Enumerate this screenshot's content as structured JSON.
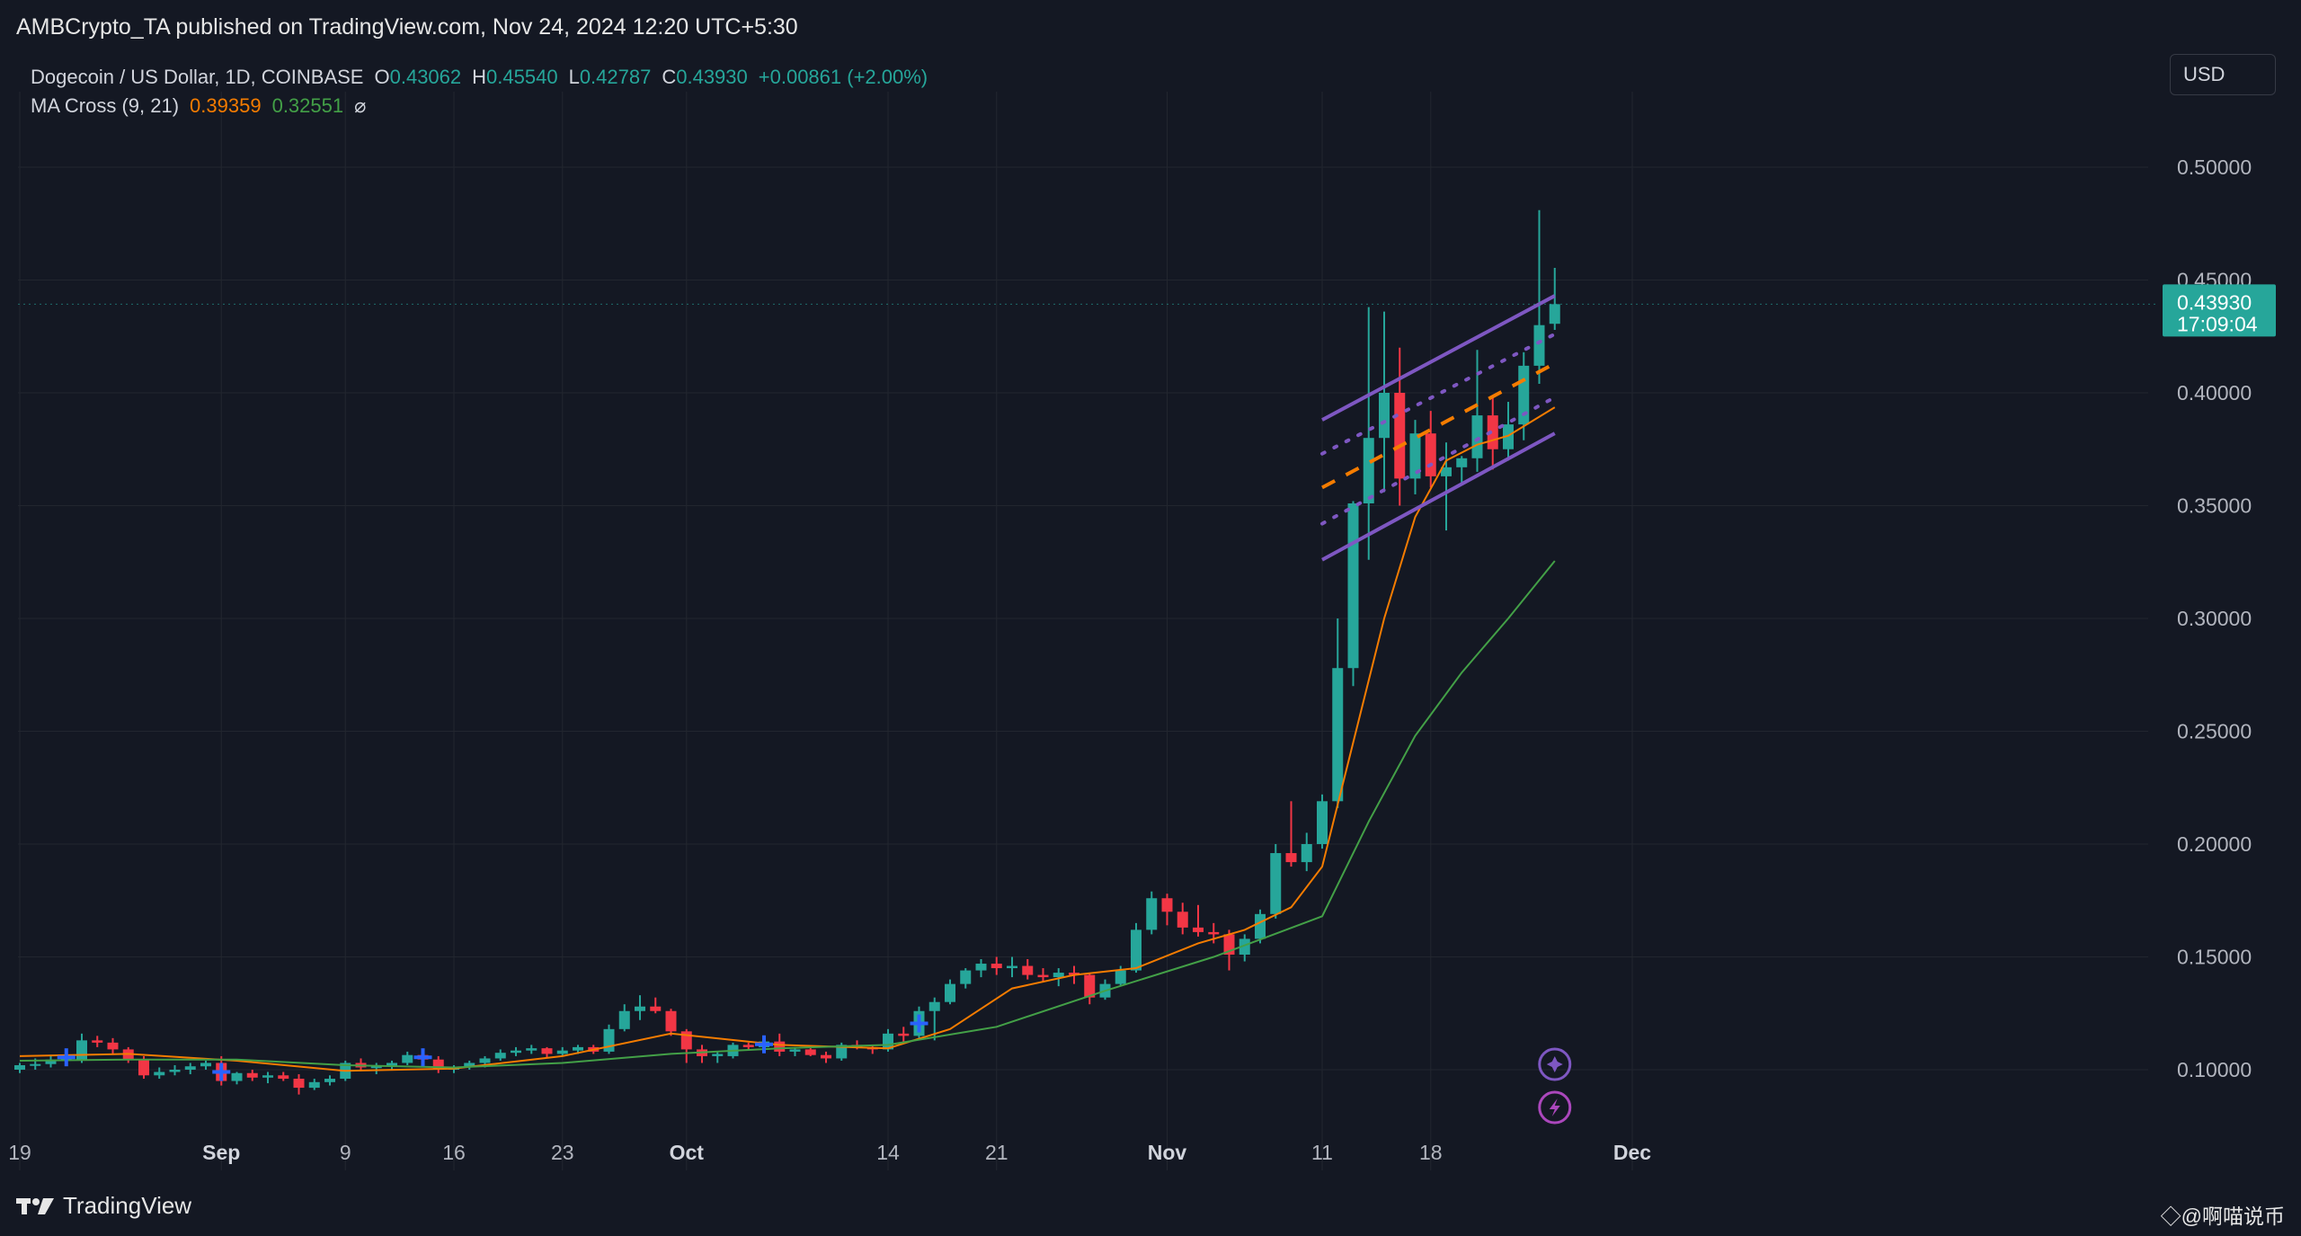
{
  "header": {
    "published": "AMBCrypto_TA published on TradingView.com, Nov 24, 2024 12:20 UTC+5:30"
  },
  "legend": {
    "symbol": "Dogecoin / US Dollar, 1D, COINBASE",
    "o_label": "O",
    "o_value": "0.43062",
    "h_label": "H",
    "h_value": "0.45540",
    "l_label": "L",
    "l_value": "0.42787",
    "c_label": "C",
    "c_value": "0.43930",
    "change": "+0.00861 (+2.00%)",
    "ma_name": "MA Cross (9, 21)",
    "ma_fast_value": "0.39359",
    "ma_slow_value": "0.32551",
    "ma_icon": "⌀"
  },
  "currency_button": "USD",
  "footer": {
    "brand": "TradingView",
    "watermark": "◇@啊喵说币"
  },
  "colors": {
    "up": "#26a69a",
    "down": "#f23645",
    "ma_fast": "#f57c00",
    "ma_slow": "#43a047",
    "channel": "#7e57c2",
    "background": "#141823",
    "grid": "#22262f",
    "cross_marker": "#2962ff"
  },
  "chart_data": {
    "type": "candlestick",
    "title": "Dogecoin / US Dollar, 1D, COINBASE",
    "y_ticks": [
      "0.10000",
      "0.15000",
      "0.20000",
      "0.25000",
      "0.30000",
      "0.35000",
      "0.40000",
      "0.45000",
      "0.50000"
    ],
    "ylim": [
      0.06,
      0.52
    ],
    "x_ticks": [
      {
        "label": "19",
        "date": "2024-08-19"
      },
      {
        "label": "Sep",
        "date": "2024-09-01"
      },
      {
        "label": "9",
        "date": "2024-09-09"
      },
      {
        "label": "16",
        "date": "2024-09-16"
      },
      {
        "label": "23",
        "date": "2024-09-23"
      },
      {
        "label": "Oct",
        "date": "2024-10-01"
      },
      {
        "label": "14",
        "date": "2024-10-14"
      },
      {
        "label": "21",
        "date": "2024-10-21"
      },
      {
        "label": "Nov",
        "date": "2024-11-01"
      },
      {
        "label": "11",
        "date": "2024-11-11"
      },
      {
        "label": "18",
        "date": "2024-11-18"
      },
      {
        "label": "Dec",
        "date": "2024-12-01"
      }
    ],
    "x_range": [
      "2024-08-19",
      "2024-12-03"
    ],
    "last_price": "0.43930",
    "countdown": "17:09:04",
    "candles": [
      {
        "d": "2024-08-19",
        "o": 0.1,
        "h": 0.103,
        "l": 0.0985,
        "c": 0.102
      },
      {
        "d": "2024-08-20",
        "o": 0.102,
        "h": 0.105,
        "l": 0.1,
        "c": 0.1025
      },
      {
        "d": "2024-08-21",
        "o": 0.1025,
        "h": 0.106,
        "l": 0.101,
        "c": 0.1045
      },
      {
        "d": "2024-08-22",
        "o": 0.1045,
        "h": 0.108,
        "l": 0.103,
        "c": 0.1065
      },
      {
        "d": "2024-08-23",
        "o": 0.104,
        "h": 0.116,
        "l": 0.103,
        "c": 0.113
      },
      {
        "d": "2024-08-24",
        "o": 0.113,
        "h": 0.115,
        "l": 0.11,
        "c": 0.112
      },
      {
        "d": "2024-08-25",
        "o": 0.112,
        "h": 0.114,
        "l": 0.107,
        "c": 0.109
      },
      {
        "d": "2024-08-26",
        "o": 0.109,
        "h": 0.11,
        "l": 0.103,
        "c": 0.1045
      },
      {
        "d": "2024-08-27",
        "o": 0.1045,
        "h": 0.106,
        "l": 0.096,
        "c": 0.0975
      },
      {
        "d": "2024-08-28",
        "o": 0.0975,
        "h": 0.101,
        "l": 0.096,
        "c": 0.099
      },
      {
        "d": "2024-08-29",
        "o": 0.099,
        "h": 0.102,
        "l": 0.0975,
        "c": 0.1
      },
      {
        "d": "2024-08-30",
        "o": 0.1,
        "h": 0.103,
        "l": 0.098,
        "c": 0.1015
      },
      {
        "d": "2024-08-31",
        "o": 0.1015,
        "h": 0.104,
        "l": 0.1,
        "c": 0.103
      },
      {
        "d": "2024-09-01",
        "o": 0.103,
        "h": 0.106,
        "l": 0.093,
        "c": 0.095
      },
      {
        "d": "2024-09-02",
        "o": 0.095,
        "h": 0.099,
        "l": 0.0935,
        "c": 0.0985
      },
      {
        "d": "2024-09-03",
        "o": 0.0985,
        "h": 0.1,
        "l": 0.095,
        "c": 0.0965
      },
      {
        "d": "2024-09-04",
        "o": 0.0965,
        "h": 0.099,
        "l": 0.094,
        "c": 0.0975
      },
      {
        "d": "2024-09-05",
        "o": 0.0975,
        "h": 0.099,
        "l": 0.095,
        "c": 0.096
      },
      {
        "d": "2024-09-06",
        "o": 0.096,
        "h": 0.098,
        "l": 0.089,
        "c": 0.092
      },
      {
        "d": "2024-09-07",
        "o": 0.092,
        "h": 0.096,
        "l": 0.091,
        "c": 0.0945
      },
      {
        "d": "2024-09-08",
        "o": 0.0945,
        "h": 0.0975,
        "l": 0.093,
        "c": 0.096
      },
      {
        "d": "2024-09-09",
        "o": 0.096,
        "h": 0.104,
        "l": 0.095,
        "c": 0.103
      },
      {
        "d": "2024-09-10",
        "o": 0.103,
        "h": 0.105,
        "l": 0.1,
        "c": 0.101
      },
      {
        "d": "2024-09-11",
        "o": 0.101,
        "h": 0.103,
        "l": 0.098,
        "c": 0.1015
      },
      {
        "d": "2024-09-12",
        "o": 0.1015,
        "h": 0.104,
        "l": 0.1,
        "c": 0.103
      },
      {
        "d": "2024-09-13",
        "o": 0.103,
        "h": 0.108,
        "l": 0.102,
        "c": 0.1065
      },
      {
        "d": "2024-09-14",
        "o": 0.1065,
        "h": 0.108,
        "l": 0.103,
        "c": 0.1045
      },
      {
        "d": "2024-09-15",
        "o": 0.1045,
        "h": 0.106,
        "l": 0.0985,
        "c": 0.1
      },
      {
        "d": "2024-09-16",
        "o": 0.1,
        "h": 0.102,
        "l": 0.0985,
        "c": 0.101
      },
      {
        "d": "2024-09-17",
        "o": 0.101,
        "h": 0.104,
        "l": 0.1,
        "c": 0.103
      },
      {
        "d": "2024-09-18",
        "o": 0.103,
        "h": 0.106,
        "l": 0.101,
        "c": 0.105
      },
      {
        "d": "2024-09-19",
        "o": 0.105,
        "h": 0.109,
        "l": 0.104,
        "c": 0.1075
      },
      {
        "d": "2024-09-20",
        "o": 0.1075,
        "h": 0.11,
        "l": 0.106,
        "c": 0.1085
      },
      {
        "d": "2024-09-21",
        "o": 0.1085,
        "h": 0.111,
        "l": 0.107,
        "c": 0.1095
      },
      {
        "d": "2024-09-22",
        "o": 0.1095,
        "h": 0.11,
        "l": 0.105,
        "c": 0.107
      },
      {
        "d": "2024-09-23",
        "o": 0.107,
        "h": 0.11,
        "l": 0.106,
        "c": 0.1085
      },
      {
        "d": "2024-09-24",
        "o": 0.1085,
        "h": 0.111,
        "l": 0.107,
        "c": 0.11
      },
      {
        "d": "2024-09-25",
        "o": 0.11,
        "h": 0.111,
        "l": 0.107,
        "c": 0.108
      },
      {
        "d": "2024-09-26",
        "o": 0.108,
        "h": 0.12,
        "l": 0.107,
        "c": 0.118
      },
      {
        "d": "2024-09-27",
        "o": 0.118,
        "h": 0.129,
        "l": 0.117,
        "c": 0.126
      },
      {
        "d": "2024-09-28",
        "o": 0.126,
        "h": 0.133,
        "l": 0.122,
        "c": 0.128
      },
      {
        "d": "2024-09-29",
        "o": 0.128,
        "h": 0.132,
        "l": 0.125,
        "c": 0.126
      },
      {
        "d": "2024-09-30",
        "o": 0.126,
        "h": 0.127,
        "l": 0.115,
        "c": 0.117
      },
      {
        "d": "2024-10-01",
        "o": 0.117,
        "h": 0.118,
        "l": 0.103,
        "c": 0.109
      },
      {
        "d": "2024-10-02",
        "o": 0.109,
        "h": 0.111,
        "l": 0.103,
        "c": 0.106
      },
      {
        "d": "2024-10-03",
        "o": 0.106,
        "h": 0.108,
        "l": 0.103,
        "c": 0.107
      },
      {
        "d": "2024-10-04",
        "o": 0.106,
        "h": 0.112,
        "l": 0.105,
        "c": 0.111
      },
      {
        "d": "2024-10-05",
        "o": 0.111,
        "h": 0.112,
        "l": 0.109,
        "c": 0.11
      },
      {
        "d": "2024-10-06",
        "o": 0.11,
        "h": 0.115,
        "l": 0.109,
        "c": 0.1125
      },
      {
        "d": "2024-10-07",
        "o": 0.1125,
        "h": 0.116,
        "l": 0.106,
        "c": 0.108
      },
      {
        "d": "2024-10-08",
        "o": 0.108,
        "h": 0.11,
        "l": 0.106,
        "c": 0.109
      },
      {
        "d": "2024-10-09",
        "o": 0.109,
        "h": 0.11,
        "l": 0.106,
        "c": 0.1065
      },
      {
        "d": "2024-10-10",
        "o": 0.1065,
        "h": 0.108,
        "l": 0.103,
        "c": 0.105
      },
      {
        "d": "2024-10-11",
        "o": 0.105,
        "h": 0.112,
        "l": 0.104,
        "c": 0.111
      },
      {
        "d": "2024-10-12",
        "o": 0.111,
        "h": 0.113,
        "l": 0.109,
        "c": 0.11
      },
      {
        "d": "2024-10-13",
        "o": 0.11,
        "h": 0.111,
        "l": 0.107,
        "c": 0.109
      },
      {
        "d": "2024-10-14",
        "o": 0.109,
        "h": 0.118,
        "l": 0.108,
        "c": 0.116
      },
      {
        "d": "2024-10-15",
        "o": 0.116,
        "h": 0.119,
        "l": 0.112,
        "c": 0.115
      },
      {
        "d": "2024-10-16",
        "o": 0.115,
        "h": 0.128,
        "l": 0.114,
        "c": 0.126
      },
      {
        "d": "2024-10-17",
        "o": 0.126,
        "h": 0.132,
        "l": 0.113,
        "c": 0.13
      },
      {
        "d": "2024-10-18",
        "o": 0.13,
        "h": 0.14,
        "l": 0.129,
        "c": 0.138
      },
      {
        "d": "2024-10-19",
        "o": 0.138,
        "h": 0.145,
        "l": 0.136,
        "c": 0.144
      },
      {
        "d": "2024-10-20",
        "o": 0.144,
        "h": 0.149,
        "l": 0.141,
        "c": 0.147
      },
      {
        "d": "2024-10-21",
        "o": 0.147,
        "h": 0.15,
        "l": 0.142,
        "c": 0.145
      },
      {
        "d": "2024-10-22",
        "o": 0.145,
        "h": 0.15,
        "l": 0.141,
        "c": 0.146
      },
      {
        "d": "2024-10-23",
        "o": 0.146,
        "h": 0.149,
        "l": 0.14,
        "c": 0.142
      },
      {
        "d": "2024-10-24",
        "o": 0.142,
        "h": 0.145,
        "l": 0.139,
        "c": 0.141
      },
      {
        "d": "2024-10-25",
        "o": 0.141,
        "h": 0.145,
        "l": 0.137,
        "c": 0.143
      },
      {
        "d": "2024-10-26",
        "o": 0.143,
        "h": 0.146,
        "l": 0.138,
        "c": 0.142
      },
      {
        "d": "2024-10-27",
        "o": 0.142,
        "h": 0.143,
        "l": 0.129,
        "c": 0.132
      },
      {
        "d": "2024-10-28",
        "o": 0.132,
        "h": 0.14,
        "l": 0.131,
        "c": 0.138
      },
      {
        "d": "2024-10-29",
        "o": 0.138,
        "h": 0.146,
        "l": 0.137,
        "c": 0.144
      },
      {
        "d": "2024-10-30",
        "o": 0.144,
        "h": 0.165,
        "l": 0.143,
        "c": 0.162
      },
      {
        "d": "2024-10-31",
        "o": 0.162,
        "h": 0.179,
        "l": 0.16,
        "c": 0.176
      },
      {
        "d": "2024-11-01",
        "o": 0.176,
        "h": 0.178,
        "l": 0.164,
        "c": 0.17
      },
      {
        "d": "2024-11-02",
        "o": 0.17,
        "h": 0.174,
        "l": 0.16,
        "c": 0.163
      },
      {
        "d": "2024-11-03",
        "o": 0.163,
        "h": 0.173,
        "l": 0.159,
        "c": 0.161
      },
      {
        "d": "2024-11-04",
        "o": 0.161,
        "h": 0.165,
        "l": 0.156,
        "c": 0.16
      },
      {
        "d": "2024-11-05",
        "o": 0.16,
        "h": 0.162,
        "l": 0.144,
        "c": 0.151
      },
      {
        "d": "2024-11-06",
        "o": 0.151,
        "h": 0.16,
        "l": 0.148,
        "c": 0.158
      },
      {
        "d": "2024-11-07",
        "o": 0.158,
        "h": 0.171,
        "l": 0.156,
        "c": 0.169
      },
      {
        "d": "2024-11-08",
        "o": 0.169,
        "h": 0.2,
        "l": 0.167,
        "c": 0.196
      },
      {
        "d": "2024-11-09",
        "o": 0.196,
        "h": 0.219,
        "l": 0.19,
        "c": 0.192
      },
      {
        "d": "2024-11-10",
        "o": 0.192,
        "h": 0.205,
        "l": 0.188,
        "c": 0.2
      },
      {
        "d": "2024-11-11",
        "o": 0.2,
        "h": 0.222,
        "l": 0.198,
        "c": 0.219
      },
      {
        "d": "2024-11-12",
        "o": 0.219,
        "h": 0.3,
        "l": 0.216,
        "c": 0.278
      },
      {
        "d": "2024-11-13",
        "o": 0.278,
        "h": 0.352,
        "l": 0.27,
        "c": 0.351
      },
      {
        "d": "2024-11-14",
        "o": 0.351,
        "h": 0.438,
        "l": 0.326,
        "c": 0.38
      },
      {
        "d": "2024-11-15",
        "o": 0.38,
        "h": 0.436,
        "l": 0.356,
        "c": 0.4
      },
      {
        "d": "2024-11-16",
        "o": 0.4,
        "h": 0.42,
        "l": 0.35,
        "c": 0.362
      },
      {
        "d": "2024-11-17",
        "o": 0.362,
        "h": 0.388,
        "l": 0.355,
        "c": 0.382
      },
      {
        "d": "2024-11-18",
        "o": 0.382,
        "h": 0.392,
        "l": 0.358,
        "c": 0.363
      },
      {
        "d": "2024-11-19",
        "o": 0.363,
        "h": 0.378,
        "l": 0.339,
        "c": 0.367
      },
      {
        "d": "2024-11-20",
        "o": 0.367,
        "h": 0.372,
        "l": 0.36,
        "c": 0.371
      },
      {
        "d": "2024-11-21",
        "o": 0.371,
        "h": 0.419,
        "l": 0.365,
        "c": 0.39
      },
      {
        "d": "2024-11-22",
        "o": 0.39,
        "h": 0.398,
        "l": 0.366,
        "c": 0.375
      },
      {
        "d": "2024-11-23",
        "o": 0.375,
        "h": 0.396,
        "l": 0.37,
        "c": 0.386
      },
      {
        "d": "2024-11-24",
        "o": 0.386,
        "h": 0.418,
        "l": 0.379,
        "c": 0.412
      },
      {
        "d": "2024-11-25",
        "o": 0.412,
        "h": 0.481,
        "l": 0.404,
        "c": 0.43
      },
      {
        "d": "2024-11-26",
        "o": 0.4306,
        "h": 0.4554,
        "l": 0.4279,
        "c": 0.4393
      }
    ],
    "series": [
      {
        "name": "MA 9",
        "color": "#f57c00",
        "points": [
          [
            "2024-08-19",
            0.106
          ],
          [
            "2024-08-26",
            0.107
          ],
          [
            "2024-09-02",
            0.104
          ],
          [
            "2024-09-09",
            0.0995
          ],
          [
            "2024-09-16",
            0.1005
          ],
          [
            "2024-09-23",
            0.106
          ],
          [
            "2024-09-30",
            0.116
          ],
          [
            "2024-10-07",
            0.111
          ],
          [
            "2024-10-14",
            0.1095
          ],
          [
            "2024-10-18",
            0.118
          ],
          [
            "2024-10-22",
            0.136
          ],
          [
            "2024-10-26",
            0.142
          ],
          [
            "2024-10-30",
            0.145
          ],
          [
            "2024-11-03",
            0.156
          ],
          [
            "2024-11-06",
            0.162
          ],
          [
            "2024-11-09",
            0.172
          ],
          [
            "2024-11-11",
            0.19
          ],
          [
            "2024-11-13",
            0.245
          ],
          [
            "2024-11-15",
            0.3
          ],
          [
            "2024-11-17",
            0.345
          ],
          [
            "2024-11-19",
            0.37
          ],
          [
            "2024-11-21",
            0.377
          ],
          [
            "2024-11-23",
            0.381
          ],
          [
            "2024-11-26",
            0.3936
          ]
        ]
      },
      {
        "name": "MA 21",
        "color": "#43a047",
        "points": [
          [
            "2024-08-19",
            0.104
          ],
          [
            "2024-08-26",
            0.1045
          ],
          [
            "2024-09-02",
            0.1045
          ],
          [
            "2024-09-09",
            0.102
          ],
          [
            "2024-09-16",
            0.101
          ],
          [
            "2024-09-23",
            0.103
          ],
          [
            "2024-09-30",
            0.107
          ],
          [
            "2024-10-07",
            0.1095
          ],
          [
            "2024-10-14",
            0.111
          ],
          [
            "2024-10-21",
            0.119
          ],
          [
            "2024-10-28",
            0.135
          ],
          [
            "2024-11-04",
            0.15
          ],
          [
            "2024-11-11",
            0.168
          ],
          [
            "2024-11-14",
            0.21
          ],
          [
            "2024-11-17",
            0.248
          ],
          [
            "2024-11-20",
            0.276
          ],
          [
            "2024-11-23",
            0.3
          ],
          [
            "2024-11-26",
            0.3255
          ]
        ]
      }
    ],
    "channel": {
      "upper": [
        [
          "2024-11-11",
          0.388
        ],
        [
          "2024-11-26",
          0.443
        ]
      ],
      "lower": [
        [
          "2024-11-11",
          0.326
        ],
        [
          "2024-11-26",
          0.382
        ]
      ],
      "mid": [
        [
          "2024-11-11",
          0.358
        ],
        [
          "2024-11-26",
          0.413
        ]
      ],
      "dot_upper": [
        [
          "2024-11-11",
          0.373
        ],
        [
          "2024-11-26",
          0.426
        ]
      ],
      "dot_lower": [
        [
          "2024-11-11",
          0.342
        ],
        [
          "2024-11-26",
          0.398
        ]
      ]
    },
    "cross_markers": [
      "2024-08-22",
      "2024-09-01",
      "2024-09-14",
      "2024-10-06",
      "2024-10-16"
    ]
  }
}
